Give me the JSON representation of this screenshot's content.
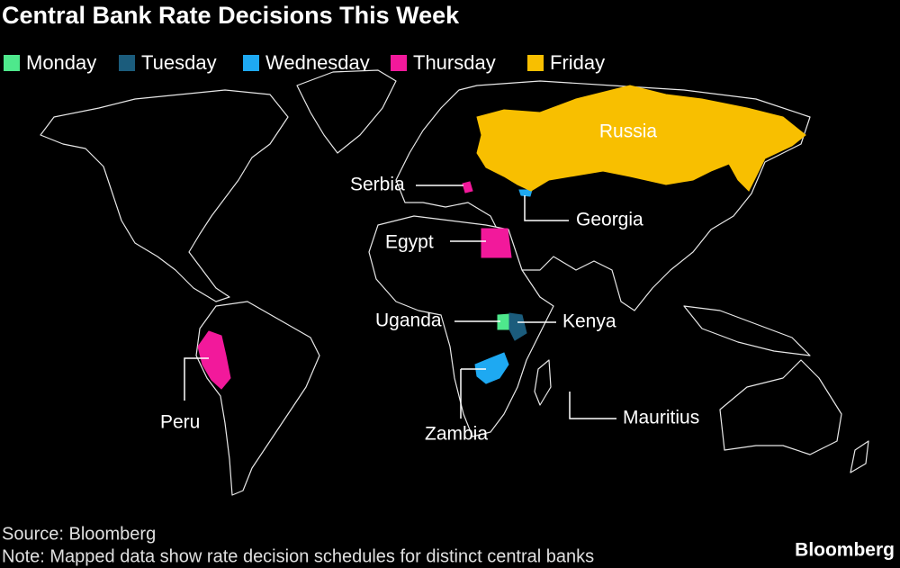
{
  "title": "Central Bank Rate Decisions This Week",
  "legend": [
    {
      "label": "Monday",
      "color": "#4ee88c",
      "countries": [
        "Uganda"
      ]
    },
    {
      "label": "Tuesday",
      "color": "#1b5c7c",
      "countries": [
        "Kenya"
      ]
    },
    {
      "label": "Wednesday",
      "color": "#1ea9f2",
      "countries": [
        "Georgia",
        "Zambia"
      ]
    },
    {
      "label": "Thursday",
      "color": "#f2199b",
      "countries": [
        "Serbia",
        "Egypt",
        "Peru"
      ]
    },
    {
      "label": "Friday",
      "color": "#f8bf00",
      "countries": [
        "Russia"
      ]
    }
  ],
  "unmarked_labels": [
    "Mauritius"
  ],
  "source": "Source: Bloomberg",
  "note": "Note: Mapped data show rate decision schedules for distinct central banks",
  "brand": "Bloomberg"
}
